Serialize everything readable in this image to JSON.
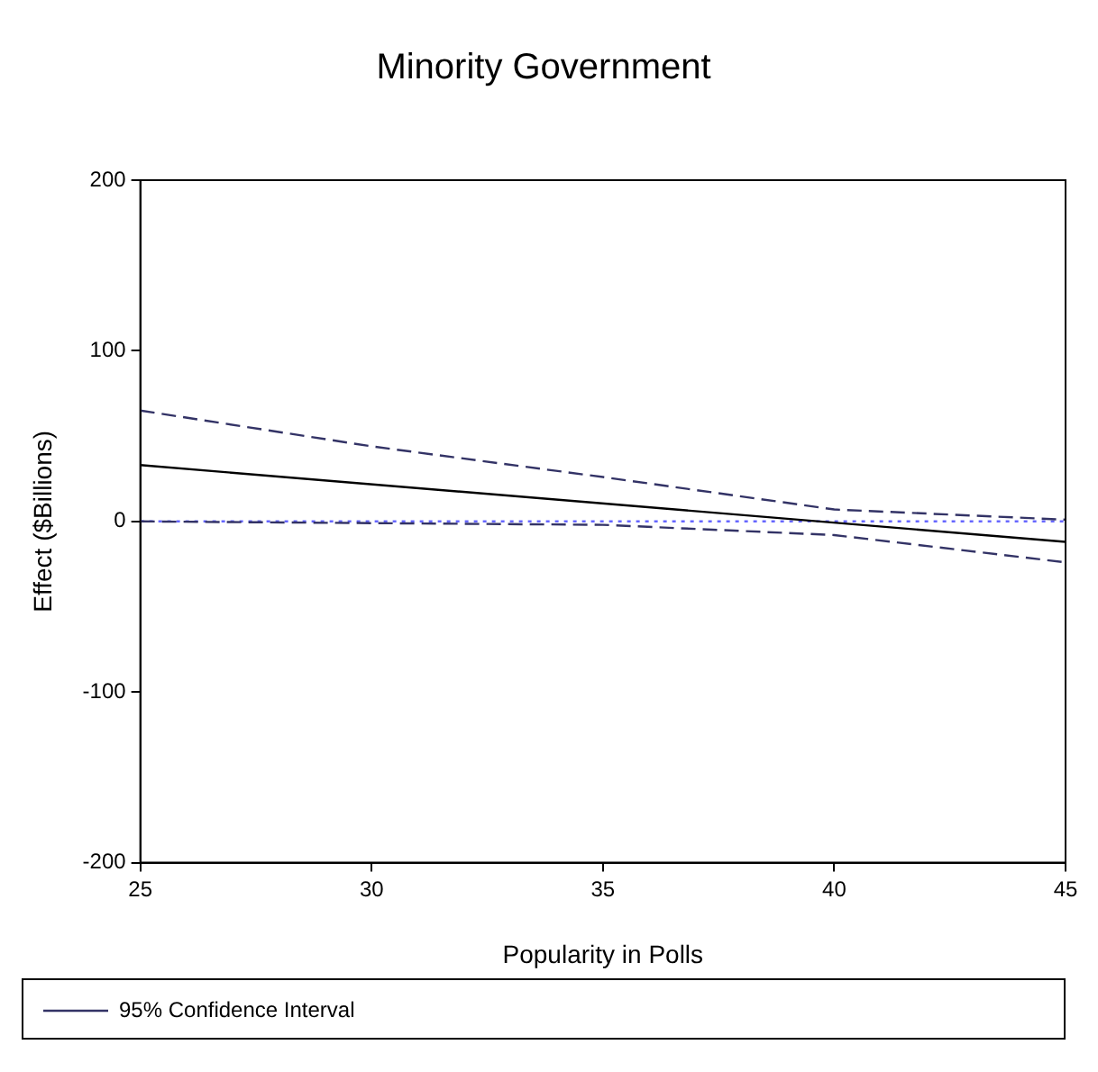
{
  "chart_data": {
    "type": "line",
    "title": "Minority Government",
    "xlabel": "Popularity in Polls",
    "ylabel": "Effect ($Billions)",
    "xlim": [
      25,
      45
    ],
    "xticks": [
      25,
      30,
      35,
      40,
      45
    ],
    "ylim": [
      -200,
      200
    ],
    "yticks": [
      -200,
      -100,
      0,
      100,
      200
    ],
    "grid": false,
    "legend": "bottom",
    "marker": "none",
    "series": [
      {
        "color": "#000000",
        "line_style": "solid",
        "x": [
          25,
          45
        ],
        "values": [
          33,
          -12
        ]
      },
      {
        "name": "95% Confidence Interval",
        "color": "#333366",
        "line_style": "dashed",
        "x": [
          25,
          30,
          35,
          40,
          45
        ],
        "values": [
          65,
          44,
          26,
          7,
          1
        ]
      },
      {
        "color": "#333366",
        "line_style": "dashed",
        "x": [
          25,
          30,
          35,
          40,
          45
        ],
        "values": [
          0,
          -1,
          -2,
          -8,
          -24
        ]
      }
    ],
    "ref_lines": [
      {
        "axis": "y",
        "value": 0,
        "color": "#6666ff",
        "line_style": "dotted"
      }
    ]
  }
}
